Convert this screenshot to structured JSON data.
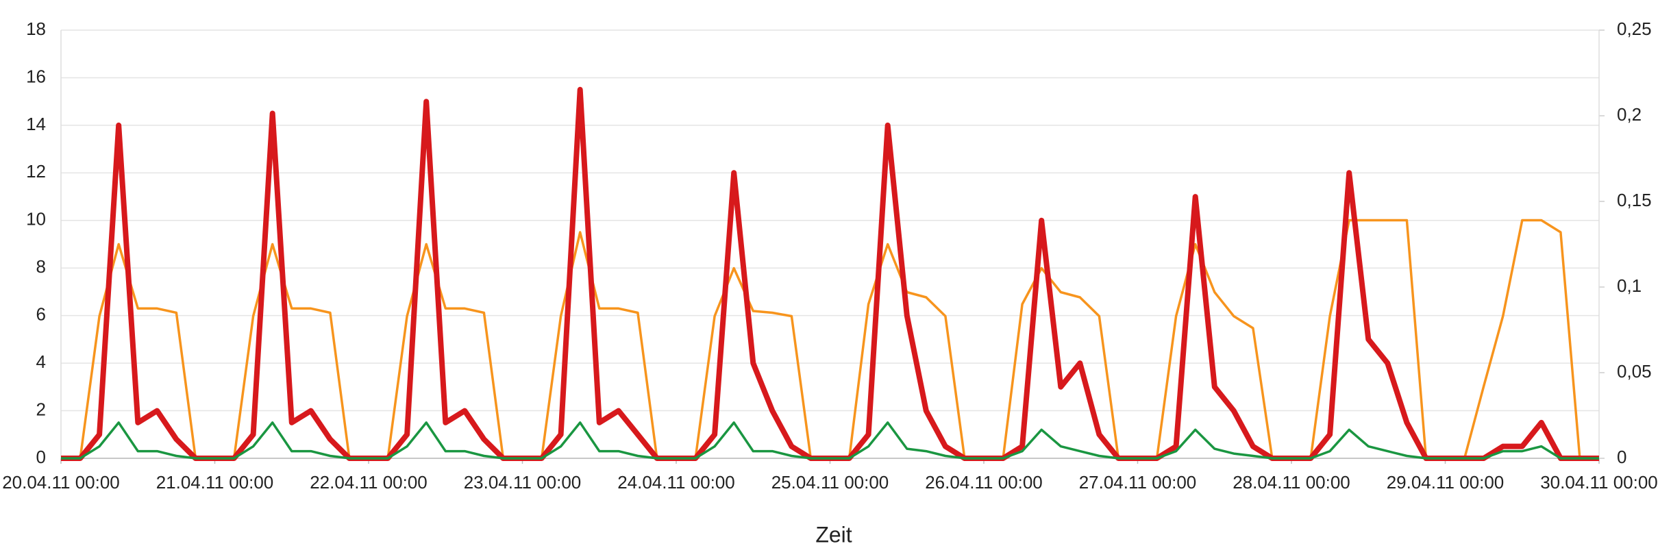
{
  "chart_data": {
    "type": "line",
    "x_label": "Zeit",
    "x": [
      "20.04.11 00:00",
      "20.04.11 03:00",
      "20.04.11 06:00",
      "20.04.11 09:00",
      "20.04.11 12:00",
      "20.04.11 15:00",
      "20.04.11 18:00",
      "20.04.11 21:00",
      "21.04.11 00:00",
      "21.04.11 03:00",
      "21.04.11 06:00",
      "21.04.11 09:00",
      "21.04.11 12:00",
      "21.04.11 15:00",
      "21.04.11 18:00",
      "21.04.11 21:00",
      "22.04.11 00:00",
      "22.04.11 03:00",
      "22.04.11 06:00",
      "22.04.11 09:00",
      "22.04.11 12:00",
      "22.04.11 15:00",
      "22.04.11 18:00",
      "22.04.11 21:00",
      "23.04.11 00:00",
      "23.04.11 03:00",
      "23.04.11 06:00",
      "23.04.11 09:00",
      "23.04.11 12:00",
      "23.04.11 15:00",
      "23.04.11 18:00",
      "23.04.11 21:00",
      "24.04.11 00:00",
      "24.04.11 03:00",
      "24.04.11 06:00",
      "24.04.11 09:00",
      "24.04.11 12:00",
      "24.04.11 15:00",
      "24.04.11 18:00",
      "24.04.11 21:00",
      "25.04.11 00:00",
      "25.04.11 03:00",
      "25.04.11 06:00",
      "25.04.11 09:00",
      "25.04.11 12:00",
      "25.04.11 15:00",
      "25.04.11 18:00",
      "25.04.11 21:00",
      "26.04.11 00:00",
      "26.04.11 03:00",
      "26.04.11 06:00",
      "26.04.11 09:00",
      "26.04.11 12:00",
      "26.04.11 15:00",
      "26.04.11 18:00",
      "26.04.11 21:00",
      "27.04.11 00:00",
      "27.04.11 03:00",
      "27.04.11 06:00",
      "27.04.11 09:00",
      "27.04.11 12:00",
      "27.04.11 15:00",
      "27.04.11 18:00",
      "27.04.11 21:00",
      "28.04.11 00:00",
      "28.04.11 03:00",
      "28.04.11 06:00",
      "28.04.11 09:00",
      "28.04.11 12:00",
      "28.04.11 15:00",
      "28.04.11 18:00",
      "28.04.11 21:00",
      "29.04.11 00:00",
      "29.04.11 03:00",
      "29.04.11 06:00",
      "29.04.11 09:00",
      "29.04.11 12:00",
      "29.04.11 15:00",
      "29.04.11 18:00",
      "29.04.11 21:00",
      "30.04.11 00:00"
    ],
    "xticks": [
      "20.04.11 00:00",
      "21.04.11 00:00",
      "22.04.11 00:00",
      "23.04.11 00:00",
      "24.04.11 00:00",
      "25.04.11 00:00",
      "26.04.11 00:00",
      "27.04.11 00:00",
      "28.04.11 00:00",
      "29.04.11 00:00",
      "30.04.11 00:00"
    ],
    "ylim": [
      0,
      18
    ],
    "yticks": [
      0,
      2,
      4,
      6,
      8,
      10,
      12,
      14,
      16,
      18
    ],
    "y2lim": [
      0,
      0.25
    ],
    "y2ticks": [
      0,
      {
        "value": 0.05,
        "label": "0,05"
      },
      {
        "value": 0.1,
        "label": "0,1"
      },
      {
        "value": 0.15,
        "label": "0,15"
      },
      {
        "value": 0.2,
        "label": "0,2"
      },
      {
        "value": 0.25,
        "label": "0,25"
      }
    ],
    "grid": true,
    "series": [
      {
        "color": "#f7941d",
        "axis": "y2",
        "values": [
          0,
          0,
          0.083,
          0.125,
          0.0875,
          0.0875,
          0.085,
          0,
          0,
          0,
          0.083,
          0.125,
          0.0875,
          0.0875,
          0.085,
          0,
          0,
          0,
          0.083,
          0.125,
          0.0875,
          0.0875,
          0.085,
          0,
          0,
          0,
          0.083,
          0.132,
          0.0875,
          0.0875,
          0.085,
          0,
          0,
          0,
          0.083,
          0.111,
          0.086,
          0.085,
          0.083,
          0,
          0,
          0,
          0.09,
          0.125,
          0.097,
          0.094,
          0.083,
          0,
          0,
          0,
          0.09,
          0.111,
          0.097,
          0.094,
          0.083,
          0,
          0,
          0,
          0.083,
          0.125,
          0.097,
          0.083,
          0.076,
          0,
          0,
          0,
          0.083,
          0.139,
          0.139,
          0.139,
          0.139,
          0,
          0,
          0,
          0.042,
          0.083,
          0.139,
          0.139,
          0.132,
          0,
          0
        ]
      },
      {
        "color": "#d7191c",
        "values": [
          0,
          0,
          1,
          14,
          1.5,
          2,
          0.8,
          0,
          0,
          0,
          1,
          14.5,
          1.5,
          2,
          0.8,
          0,
          0,
          0,
          1,
          15,
          1.5,
          2,
          0.8,
          0,
          0,
          0,
          1,
          15.5,
          1.5,
          2,
          1,
          0,
          0,
          0,
          1,
          12,
          4,
          2,
          0.5,
          0,
          0,
          0,
          1,
          14,
          6,
          2,
          0.5,
          0,
          0,
          0,
          0.5,
          10,
          3,
          4,
          1,
          0,
          0,
          0,
          0.5,
          11,
          3,
          2,
          0.5,
          0,
          0,
          0,
          1,
          12,
          5,
          4,
          1.5,
          0,
          0,
          0,
          0,
          0.5,
          0.5,
          1.5,
          0,
          0,
          0
        ]
      },
      {
        "color": "#1a9641",
        "values": [
          0,
          0,
          0.5,
          1.5,
          0.3,
          0.3,
          0.1,
          0,
          0,
          0,
          0.5,
          1.5,
          0.3,
          0.3,
          0.1,
          0,
          0,
          0,
          0.5,
          1.5,
          0.3,
          0.3,
          0.1,
          0,
          0,
          0,
          0.5,
          1.5,
          0.3,
          0.3,
          0.1,
          0,
          0,
          0,
          0.5,
          1.5,
          0.3,
          0.3,
          0.1,
          0,
          0,
          0,
          0.5,
          1.5,
          0.4,
          0.3,
          0.1,
          0,
          0,
          0,
          0.3,
          1.2,
          0.5,
          0.3,
          0.1,
          0,
          0,
          0,
          0.3,
          1.2,
          0.4,
          0.2,
          0.1,
          0,
          0,
          0,
          0.3,
          1.2,
          0.5,
          0.3,
          0.1,
          0,
          0,
          0,
          0,
          0.3,
          0.3,
          0.5,
          0,
          0,
          0
        ]
      }
    ]
  }
}
